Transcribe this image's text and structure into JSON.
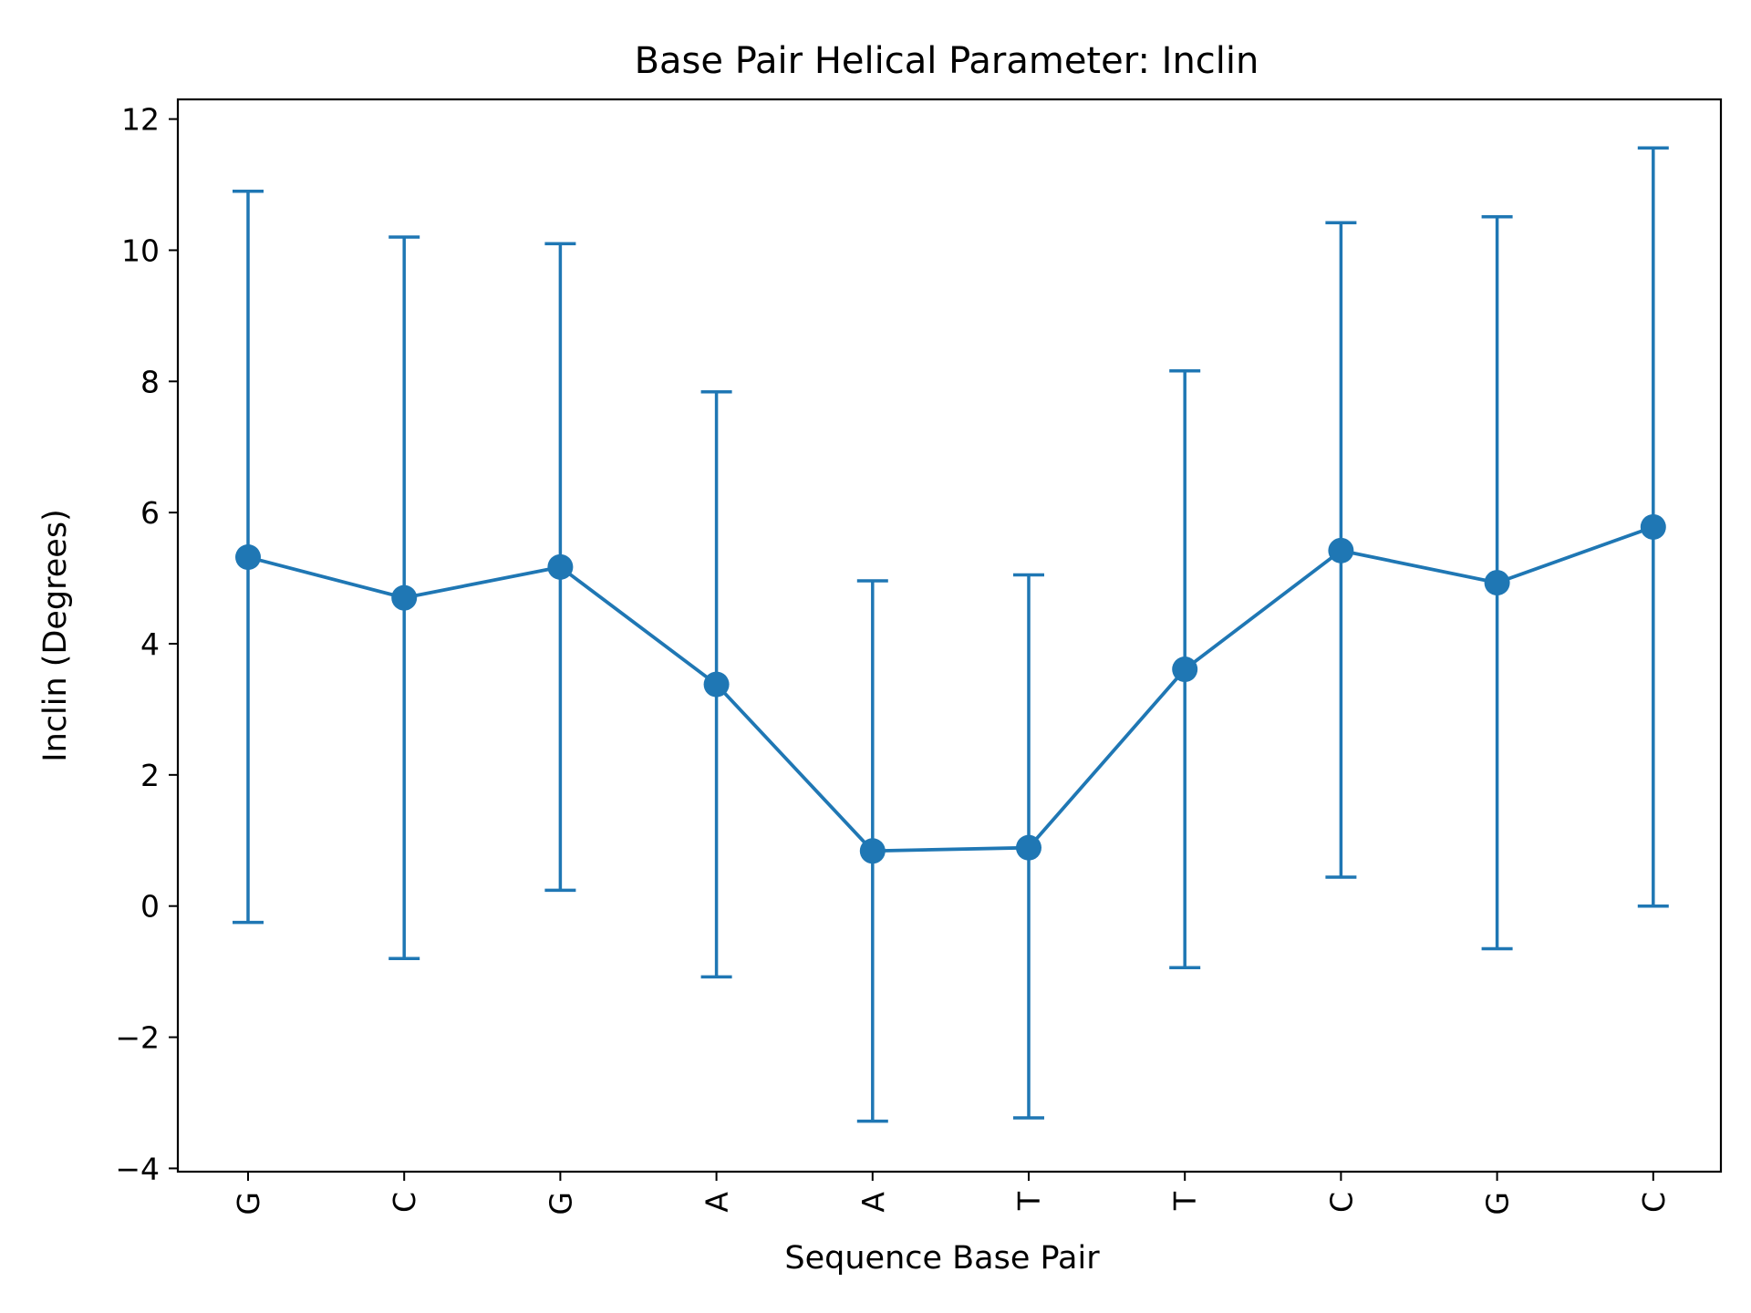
{
  "chart_data": {
    "type": "line",
    "title": "Base Pair  Helical Parameter: Inclin",
    "xlabel": "Sequence Base Pair",
    "ylabel": "Inclin (Degrees)",
    "categories": [
      "G",
      "C",
      "G",
      "A",
      "A",
      "T",
      "T",
      "C",
      "G",
      "C"
    ],
    "series": [
      {
        "values": [
          5.32,
          4.7,
          5.17,
          3.38,
          0.84,
          0.89,
          3.61,
          5.42,
          4.93,
          5.78
        ],
        "error_low": [
          -0.25,
          -0.8,
          0.24,
          -1.08,
          -3.28,
          -3.23,
          -0.94,
          0.44,
          -0.65,
          0.0
        ],
        "error_high": [
          10.9,
          10.2,
          10.1,
          7.84,
          4.96,
          5.05,
          8.16,
          10.42,
          10.51,
          11.56
        ],
        "color": "#1f77b4"
      }
    ],
    "ylim": [
      -4.05,
      12.3
    ],
    "yticks": [
      -4,
      -2,
      0,
      2,
      4,
      6,
      8,
      10,
      12
    ],
    "ytick_labels": [
      "−4",
      "−2",
      "0",
      "2",
      "4",
      "6",
      "8",
      "10",
      "12"
    ],
    "grid": false,
    "legend": "none"
  }
}
